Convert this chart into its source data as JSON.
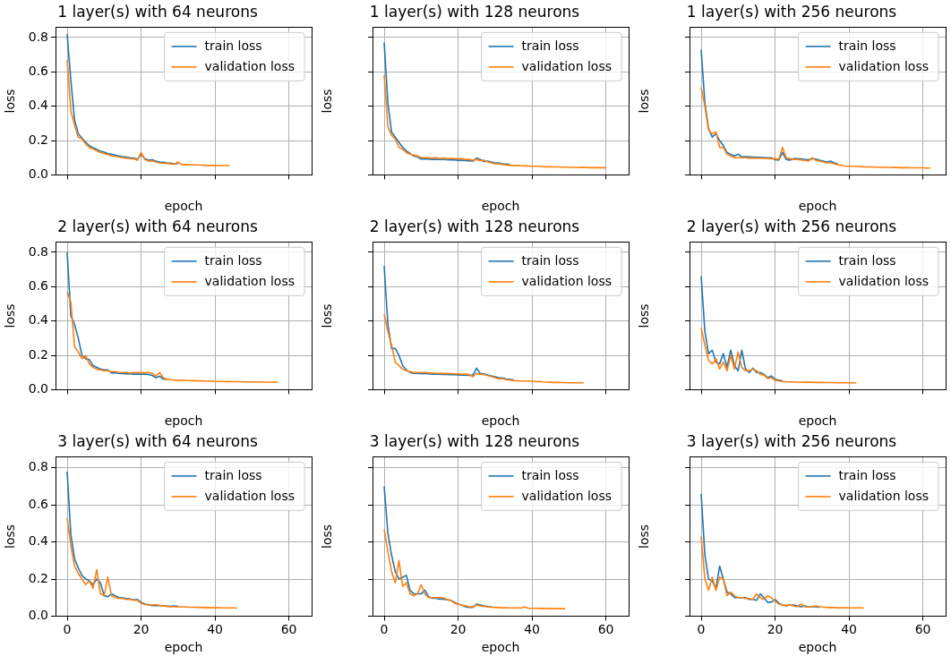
{
  "chart_data": [
    {
      "type": "line",
      "title": "1 layer(s) with 64 neurons",
      "xlabel": "epoch",
      "ylabel": "loss",
      "xlim": [
        -3.15,
        66.15
      ],
      "xticks": [
        0,
        20,
        40,
        60
      ],
      "ylim": [
        0,
        0.86
      ],
      "yticks": [
        {
          "value": 0,
          "label": "0.0"
        },
        {
          "value": 0.2,
          "label": "0.2"
        },
        {
          "value": 0.4,
          "label": "0.4"
        },
        {
          "value": 0.6,
          "label": "0.6"
        },
        {
          "value": 0.8,
          "label": "0.8"
        }
      ],
      "grid": true,
      "legend": "top right",
      "tick_labels": "y",
      "x": [
        0,
        1,
        2,
        3,
        4,
        5,
        6,
        7,
        8,
        9,
        10,
        11,
        12,
        13,
        14,
        15,
        16,
        17,
        18,
        19,
        20,
        21,
        22,
        23,
        24,
        25,
        26,
        27,
        28,
        29,
        30,
        31,
        32,
        33,
        34,
        35,
        36,
        37,
        38,
        39,
        40,
        41,
        42,
        43,
        44
      ],
      "series": [
        {
          "name": "train loss",
          "color": "#1f77b4",
          "values": [
            0.82,
            0.55,
            0.32,
            0.24,
            0.215,
            0.19,
            0.17,
            0.158,
            0.148,
            0.138,
            0.132,
            0.125,
            0.12,
            0.115,
            0.11,
            0.106,
            0.104,
            0.1,
            0.098,
            0.09,
            0.12,
            0.095,
            0.085,
            0.088,
            0.08,
            0.075,
            0.073,
            0.07,
            0.068,
            0.065,
            0.065,
            null,
            null,
            null,
            null,
            null,
            null,
            null,
            null,
            null,
            null,
            null,
            null,
            null,
            null
          ]
        },
        {
          "name": "validation loss",
          "color": "#ff7f0e",
          "values": [
            0.67,
            0.37,
            0.29,
            0.22,
            0.21,
            0.18,
            0.16,
            0.15,
            0.14,
            0.13,
            0.125,
            0.118,
            0.112,
            0.108,
            0.104,
            0.1,
            0.098,
            0.095,
            0.093,
            0.085,
            0.13,
            0.09,
            0.08,
            0.082,
            0.075,
            0.07,
            0.068,
            0.066,
            0.064,
            0.062,
            0.075,
            0.06,
            0.06,
            0.06,
            0.058,
            0.058,
            0.057,
            0.056,
            0.055,
            0.055,
            0.055,
            0.054,
            0.054,
            0.054,
            0.054
          ]
        }
      ]
    },
    {
      "type": "line",
      "title": "1 layer(s) with 128 neurons",
      "xlabel": "epoch",
      "ylabel": "loss",
      "xlim": [
        -3.15,
        66.15
      ],
      "xticks": [
        0,
        20,
        40,
        60
      ],
      "ylim": [
        0,
        0.86
      ],
      "yticks": [
        0,
        0.2,
        0.4,
        0.6,
        0.8
      ],
      "grid": true,
      "legend": "top right",
      "tick_labels": false,
      "x": [
        0,
        1,
        2,
        3,
        4,
        5,
        6,
        7,
        8,
        9,
        10,
        11,
        12,
        13,
        14,
        15,
        16,
        17,
        18,
        19,
        20,
        21,
        22,
        23,
        24,
        25,
        26,
        27,
        28,
        29,
        30,
        31,
        32,
        33,
        34,
        35,
        36,
        37,
        38,
        39,
        40,
        41,
        42,
        43,
        44,
        45,
        46,
        47,
        48,
        49,
        50,
        51,
        52,
        53,
        54,
        55,
        56,
        57,
        58,
        59,
        60
      ],
      "series": [
        {
          "name": "train loss",
          "color": "#1f77b4",
          "values": [
            0.77,
            0.42,
            0.25,
            0.22,
            0.19,
            0.16,
            0.14,
            0.125,
            0.11,
            0.105,
            0.092,
            0.092,
            0.092,
            0.09,
            0.09,
            0.089,
            0.089,
            0.088,
            0.087,
            0.087,
            0.085,
            0.085,
            0.083,
            0.082,
            0.08,
            0.098,
            0.09,
            0.078,
            0.08,
            0.075,
            0.07,
            0.07,
            0.065,
            0.063,
            0.06,
            null,
            null,
            null,
            null,
            null,
            null,
            null,
            null,
            null,
            null,
            null,
            null,
            null,
            null,
            null,
            null,
            null,
            null,
            null,
            null,
            null,
            null,
            null,
            null,
            null,
            null
          ]
        },
        {
          "name": "validation loss",
          "color": "#ff7f0e",
          "values": [
            0.58,
            0.28,
            0.23,
            0.21,
            0.16,
            0.15,
            0.13,
            0.12,
            0.115,
            0.11,
            0.1,
            0.1,
            0.1,
            0.098,
            0.1,
            0.096,
            0.098,
            0.096,
            0.095,
            0.095,
            0.093,
            0.094,
            0.09,
            0.09,
            0.085,
            0.09,
            0.083,
            0.085,
            0.075,
            0.07,
            0.065,
            0.065,
            0.06,
            0.058,
            0.056,
            0.055,
            0.055,
            0.053,
            0.052,
            0.052,
            0.05,
            0.05,
            0.049,
            0.048,
            0.047,
            0.047,
            0.046,
            0.046,
            0.045,
            0.045,
            0.044,
            0.044,
            0.044,
            0.043,
            0.043,
            0.043,
            0.042,
            0.042,
            0.042,
            0.042,
            0.042
          ]
        }
      ]
    },
    {
      "type": "line",
      "title": "1 layer(s) with 256 neurons",
      "xlabel": "epoch",
      "ylabel": "loss",
      "xlim": [
        -3.15,
        66.15
      ],
      "xticks": [
        0,
        20,
        40,
        60
      ],
      "ylim": [
        0,
        0.86
      ],
      "yticks": [
        0,
        0.2,
        0.4,
        0.6,
        0.8
      ],
      "grid": true,
      "legend": "top right",
      "tick_labels": false,
      "x": [
        0,
        1,
        2,
        3,
        4,
        5,
        6,
        7,
        8,
        9,
        10,
        11,
        12,
        13,
        14,
        15,
        16,
        17,
        18,
        19,
        20,
        21,
        22,
        23,
        24,
        25,
        26,
        27,
        28,
        29,
        30,
        31,
        32,
        33,
        34,
        35,
        36,
        37,
        38,
        39,
        40,
        41,
        42,
        43,
        44,
        45,
        46,
        47,
        48,
        49,
        50,
        51,
        52,
        53,
        54,
        55,
        56,
        57,
        58,
        59,
        60,
        61,
        62
      ],
      "series": [
        {
          "name": "train loss",
          "color": "#1f77b4",
          "values": [
            0.73,
            0.42,
            0.27,
            0.22,
            0.24,
            0.2,
            0.17,
            0.13,
            0.12,
            0.11,
            0.12,
            0.105,
            0.106,
            0.105,
            0.104,
            0.103,
            0.102,
            0.101,
            0.1,
            0.099,
            0.088,
            0.086,
            0.13,
            0.09,
            0.086,
            0.095,
            0.094,
            0.093,
            0.09,
            0.088,
            0.095,
            0.092,
            0.085,
            0.08,
            0.075,
            0.08,
            0.07,
            0.063,
            null,
            null,
            null,
            null,
            null,
            null,
            null,
            null,
            null,
            null,
            null,
            null,
            null,
            null,
            null,
            null,
            null,
            null,
            null,
            null,
            null,
            null,
            null,
            null,
            null
          ]
        },
        {
          "name": "validation loss",
          "color": "#ff7f0e",
          "values": [
            0.51,
            0.4,
            0.26,
            0.24,
            0.25,
            0.16,
            0.16,
            0.12,
            0.11,
            0.1,
            0.1,
            0.1,
            0.1,
            0.098,
            0.098,
            0.098,
            0.097,
            0.096,
            0.095,
            0.094,
            0.095,
            0.09,
            0.16,
            0.1,
            0.095,
            0.09,
            0.09,
            0.087,
            0.085,
            0.08,
            0.1,
            0.085,
            0.08,
            0.075,
            0.07,
            0.07,
            0.065,
            0.058,
            0.055,
            0.052,
            0.05,
            0.05,
            0.049,
            0.048,
            0.047,
            0.046,
            0.046,
            0.045,
            0.045,
            0.044,
            0.044,
            0.044,
            0.043,
            0.043,
            0.042,
            0.042,
            0.042,
            0.041,
            0.041,
            0.041,
            0.041,
            0.04,
            0.04
          ]
        }
      ]
    },
    {
      "type": "line",
      "title": "2 layer(s) with 64 neurons",
      "xlabel": "epoch",
      "ylabel": "loss",
      "xlim": [
        -3.15,
        66.15
      ],
      "xticks": [
        0,
        20,
        40,
        60
      ],
      "ylim": [
        0,
        0.86
      ],
      "yticks": [
        {
          "value": 0,
          "label": "0.0"
        },
        {
          "value": 0.2,
          "label": "0.2"
        },
        {
          "value": 0.4,
          "label": "0.4"
        },
        {
          "value": 0.6,
          "label": "0.6"
        },
        {
          "value": 0.8,
          "label": "0.8"
        }
      ],
      "grid": true,
      "legend": "top right",
      "tick_labels": "y",
      "x": [
        0,
        1,
        2,
        3,
        4,
        5,
        6,
        7,
        8,
        9,
        10,
        11,
        12,
        13,
        14,
        15,
        16,
        17,
        18,
        19,
        20,
        21,
        22,
        23,
        24,
        25,
        26,
        27,
        28,
        29,
        30,
        31,
        32,
        33,
        34,
        35,
        36,
        37,
        38,
        39,
        40,
        41,
        42,
        43,
        44,
        45,
        46,
        47,
        48,
        49,
        50,
        51,
        52,
        53,
        54,
        55,
        56,
        57
      ],
      "series": [
        {
          "name": "train loss",
          "color": "#1f77b4",
          "values": [
            0.8,
            0.43,
            0.38,
            0.3,
            0.2,
            0.18,
            0.175,
            0.14,
            0.13,
            0.12,
            0.115,
            0.115,
            0.098,
            0.097,
            0.095,
            0.094,
            0.092,
            0.093,
            0.09,
            0.09,
            0.09,
            0.09,
            0.088,
            0.083,
            0.07,
            0.078,
            0.062,
            0.06,
            null,
            null,
            null,
            null,
            null,
            null,
            null,
            null,
            null,
            null,
            null,
            null,
            null,
            null,
            null,
            null,
            null,
            null,
            null,
            null,
            null,
            null,
            null,
            null,
            null,
            null,
            null,
            null,
            null,
            null
          ]
        },
        {
          "name": "validation loss",
          "color": "#ff7f0e",
          "values": [
            0.57,
            0.51,
            0.25,
            0.22,
            0.18,
            0.2,
            0.15,
            0.13,
            0.12,
            0.115,
            0.11,
            0.11,
            0.105,
            0.105,
            0.1,
            0.1,
            0.1,
            0.097,
            0.1,
            0.1,
            0.1,
            0.098,
            0.1,
            0.095,
            0.08,
            0.1,
            0.07,
            0.06,
            0.058,
            0.056,
            0.055,
            0.055,
            0.054,
            0.053,
            0.052,
            0.052,
            0.051,
            0.05,
            0.05,
            0.049,
            0.049,
            0.048,
            0.048,
            0.047,
            0.047,
            0.046,
            0.046,
            0.046,
            0.045,
            0.045,
            0.045,
            0.045,
            0.045,
            0.044,
            0.044,
            0.044,
            0.044,
            0.044
          ]
        }
      ]
    },
    {
      "type": "line",
      "title": "2 layer(s) with 128 neurons",
      "xlabel": "epoch",
      "ylabel": "loss",
      "xlim": [
        -3.15,
        66.15
      ],
      "xticks": [
        0,
        20,
        40,
        60
      ],
      "ylim": [
        0,
        0.86
      ],
      "yticks": [
        0,
        0.2,
        0.4,
        0.6,
        0.8
      ],
      "grid": true,
      "legend": "top right",
      "tick_labels": false,
      "x": [
        0,
        1,
        2,
        3,
        4,
        5,
        6,
        7,
        8,
        9,
        10,
        11,
        12,
        13,
        14,
        15,
        16,
        17,
        18,
        19,
        20,
        21,
        22,
        23,
        24,
        25,
        26,
        27,
        28,
        29,
        30,
        31,
        32,
        33,
        34,
        35,
        36,
        37,
        38,
        39,
        40,
        41,
        42,
        43,
        44,
        45,
        46,
        47,
        48,
        49,
        50,
        51,
        52,
        53,
        54
      ],
      "series": [
        {
          "name": "train loss",
          "color": "#1f77b4",
          "values": [
            0.72,
            0.38,
            0.24,
            0.24,
            0.2,
            0.14,
            0.115,
            0.1,
            0.095,
            0.095,
            0.094,
            0.093,
            0.092,
            0.09,
            0.09,
            0.089,
            0.088,
            0.088,
            0.087,
            0.087,
            0.086,
            0.085,
            0.084,
            0.083,
            0.085,
            0.125,
            0.095,
            0.092,
            0.085,
            0.08,
            0.075,
            0.07,
            0.068,
            0.062,
            0.06,
            0.056,
            null,
            null,
            null,
            null,
            null,
            null,
            null,
            null,
            null,
            null,
            null,
            null,
            null,
            null,
            null,
            null,
            null,
            null,
            null
          ]
        },
        {
          "name": "validation loss",
          "color": "#ff7f0e",
          "values": [
            0.44,
            0.34,
            0.26,
            0.16,
            0.14,
            0.12,
            0.11,
            0.105,
            0.1,
            0.1,
            0.1,
            0.1,
            0.098,
            0.097,
            0.096,
            0.095,
            0.094,
            0.094,
            0.093,
            0.092,
            0.092,
            0.09,
            0.09,
            0.088,
            0.075,
            0.095,
            0.09,
            0.088,
            0.082,
            0.076,
            0.07,
            0.062,
            0.065,
            0.058,
            0.056,
            0.053,
            0.052,
            0.05,
            0.05,
            0.05,
            0.05,
            0.048,
            0.047,
            0.045,
            0.044,
            0.043,
            0.042,
            0.042,
            0.041,
            0.041,
            0.04,
            0.04,
            0.04,
            0.04,
            0.04
          ]
        }
      ]
    },
    {
      "type": "line",
      "title": "2 layer(s) with 256 neurons",
      "xlabel": "epoch",
      "ylabel": "loss",
      "xlim": [
        -3.15,
        66.15
      ],
      "xticks": [
        0,
        20,
        40,
        60
      ],
      "ylim": [
        0,
        0.86
      ],
      "yticks": [
        0,
        0.2,
        0.4,
        0.6,
        0.8
      ],
      "grid": true,
      "legend": "top right",
      "tick_labels": false,
      "x": [
        0,
        1,
        2,
        3,
        4,
        5,
        6,
        7,
        8,
        9,
        10,
        11,
        12,
        13,
        14,
        15,
        16,
        17,
        18,
        19,
        20,
        21,
        22,
        23,
        24,
        25,
        26,
        27,
        28,
        29,
        30,
        31,
        32,
        33,
        34,
        35,
        36,
        37,
        38,
        39,
        40,
        41,
        42
      ],
      "series": [
        {
          "name": "train loss",
          "color": "#1f77b4",
          "values": [
            0.66,
            0.34,
            0.21,
            0.23,
            0.16,
            0.15,
            0.21,
            0.13,
            0.23,
            0.14,
            0.11,
            0.23,
            0.12,
            0.1,
            0.125,
            0.1,
            0.1,
            0.09,
            0.07,
            0.08,
            0.06,
            0.055,
            0.052,
            null,
            null,
            null,
            null,
            null,
            null,
            null,
            null,
            null,
            null,
            null,
            null,
            null,
            null,
            null,
            null,
            null,
            null,
            null,
            null
          ]
        },
        {
          "name": "validation loss",
          "color": "#ff7f0e",
          "values": [
            0.36,
            0.26,
            0.17,
            0.15,
            0.18,
            0.12,
            0.16,
            0.11,
            0.2,
            0.12,
            0.22,
            0.13,
            0.11,
            0.11,
            0.12,
            0.11,
            0.09,
            0.085,
            0.065,
            0.07,
            0.055,
            0.05,
            0.048,
            0.046,
            0.045,
            0.045,
            0.044,
            0.044,
            0.043,
            0.043,
            0.043,
            0.042,
            0.042,
            0.042,
            0.041,
            0.041,
            0.041,
            0.04,
            0.04,
            0.04,
            0.04,
            0.04,
            0.04
          ]
        }
      ]
    },
    {
      "type": "line",
      "title": "3 layer(s) with 64 neurons",
      "xlabel": "epoch",
      "ylabel": "loss",
      "xlim": [
        -3.15,
        66.15
      ],
      "xticks": [
        0,
        20,
        40,
        60
      ],
      "ylim": [
        0,
        0.86
      ],
      "yticks": [
        {
          "value": 0,
          "label": "0.0"
        },
        {
          "value": 0.2,
          "label": "0.2"
        },
        {
          "value": 0.4,
          "label": "0.4"
        },
        {
          "value": 0.6,
          "label": "0.6"
        },
        {
          "value": 0.8,
          "label": "0.8"
        }
      ],
      "grid": true,
      "legend": "top right",
      "x": [
        0,
        1,
        2,
        3,
        4,
        5,
        6,
        7,
        8,
        9,
        10,
        11,
        12,
        13,
        14,
        15,
        16,
        17,
        18,
        19,
        20,
        21,
        22,
        23,
        24,
        25,
        26,
        27,
        28,
        29,
        30,
        31,
        32,
        33,
        34,
        35,
        36,
        37,
        38,
        39,
        40,
        41,
        42,
        43,
        44,
        45,
        46
      ],
      "series": [
        {
          "name": "train loss",
          "color": "#1f77b4",
          "values": [
            0.78,
            0.44,
            0.31,
            0.26,
            0.22,
            0.2,
            0.19,
            0.17,
            0.2,
            0.18,
            0.11,
            0.105,
            0.12,
            0.11,
            0.1,
            0.098,
            0.095,
            0.093,
            0.088,
            0.09,
            0.075,
            0.065,
            0.062,
            0.057,
            0.058,
            0.056,
            0.055,
            0.054,
            0.053,
            0.055,
            0.052,
            null,
            null,
            null,
            null,
            null,
            null,
            null,
            null,
            null,
            null,
            null,
            null,
            null,
            null,
            null,
            null
          ]
        },
        {
          "name": "validation loss",
          "color": "#ff7f0e",
          "values": [
            0.53,
            0.38,
            0.27,
            0.23,
            0.2,
            0.17,
            0.19,
            0.15,
            0.25,
            0.12,
            0.11,
            0.21,
            0.11,
            0.1,
            0.095,
            0.095,
            0.09,
            0.09,
            0.085,
            0.085,
            0.07,
            0.062,
            0.06,
            0.06,
            0.062,
            0.058,
            0.055,
            0.052,
            0.05,
            0.05,
            0.05,
            0.05,
            0.049,
            0.048,
            0.048,
            0.047,
            0.047,
            0.046,
            0.046,
            0.045,
            0.045,
            0.045,
            0.044,
            0.044,
            0.044,
            0.044,
            0.043
          ]
        }
      ]
    },
    {
      "type": "line",
      "title": "3 layer(s) with 128 neurons",
      "xlabel": "epoch",
      "ylabel": "loss",
      "xlim": [
        -3.15,
        66.15
      ],
      "xticks": [
        0,
        20,
        40,
        60
      ],
      "ylim": [
        0,
        0.86
      ],
      "yticks": [
        0,
        0.2,
        0.4,
        0.6,
        0.8
      ],
      "grid": true,
      "legend": "top right",
      "tick_labels": "x",
      "x": [
        0,
        1,
        2,
        3,
        4,
        5,
        6,
        7,
        8,
        9,
        10,
        11,
        12,
        13,
        14,
        15,
        16,
        17,
        18,
        19,
        20,
        21,
        22,
        23,
        24,
        25,
        26,
        27,
        28,
        29,
        30,
        31,
        32,
        33,
        34,
        35,
        36,
        37,
        38,
        39,
        40,
        41,
        42,
        43,
        44,
        45,
        46,
        47,
        48,
        49
      ],
      "series": [
        {
          "name": "train loss",
          "color": "#1f77b4",
          "values": [
            0.7,
            0.45,
            0.33,
            0.24,
            0.2,
            0.21,
            0.22,
            0.14,
            0.12,
            0.12,
            0.12,
            0.14,
            0.105,
            0.096,
            0.096,
            0.092,
            0.092,
            0.088,
            0.085,
            0.075,
            0.065,
            0.06,
            0.05,
            0.047,
            0.047,
            0.065,
            0.06,
            0.055,
            0.052,
            0.05,
            null,
            null,
            null,
            null,
            null,
            null,
            null,
            null,
            null,
            null,
            null,
            null,
            null,
            null,
            null,
            null,
            null,
            null,
            null,
            null
          ]
        },
        {
          "name": "validation loss",
          "color": "#ff7f0e",
          "values": [
            0.47,
            0.35,
            0.24,
            0.18,
            0.3,
            0.16,
            0.18,
            0.12,
            0.11,
            0.12,
            0.17,
            0.12,
            0.1,
            0.1,
            0.1,
            0.1,
            0.098,
            0.09,
            0.085,
            0.07,
            0.065,
            0.06,
            0.055,
            0.05,
            0.05,
            0.06,
            0.055,
            0.052,
            0.05,
            0.048,
            0.047,
            0.046,
            0.045,
            0.045,
            0.044,
            0.044,
            0.044,
            0.043,
            0.05,
            0.042,
            0.042,
            0.042,
            0.041,
            0.041,
            0.041,
            0.04,
            0.04,
            0.04,
            0.04,
            0.04
          ]
        }
      ]
    },
    {
      "type": "line",
      "title": "3 layer(s) with 256 neurons",
      "xlabel": "epoch",
      "ylabel": "loss",
      "xlim": [
        -3.15,
        66.15
      ],
      "xticks": [
        0,
        20,
        40,
        60
      ],
      "ylim": [
        0,
        0.86
      ],
      "yticks": [
        0,
        0.2,
        0.4,
        0.6,
        0.8
      ],
      "grid": true,
      "legend": "top right",
      "tick_labels": "x",
      "x": [
        0,
        1,
        2,
        3,
        4,
        5,
        6,
        7,
        8,
        9,
        10,
        11,
        12,
        13,
        14,
        15,
        16,
        17,
        18,
        19,
        20,
        21,
        22,
        23,
        24,
        25,
        26,
        27,
        28,
        29,
        30,
        31,
        32,
        33,
        34,
        35,
        36,
        37,
        38,
        39,
        40,
        41,
        42,
        43,
        44
      ],
      "series": [
        {
          "name": "train loss",
          "color": "#1f77b4",
          "values": [
            0.66,
            0.33,
            0.2,
            0.19,
            0.15,
            0.27,
            0.2,
            0.13,
            0.12,
            0.1,
            0.1,
            0.1,
            0.1,
            0.09,
            0.09,
            0.085,
            0.12,
            0.1,
            0.075,
            0.075,
            0.09,
            0.07,
            0.06,
            0.055,
            0.06,
            0.06,
            0.055,
            0.05,
            0.055,
            0.05,
            0.05,
            0.05,
            0.048,
            null,
            null,
            null,
            null,
            null,
            null,
            null,
            null,
            null,
            null,
            null,
            null
          ]
        },
        {
          "name": "validation loss",
          "color": "#ff7f0e",
          "values": [
            0.43,
            0.2,
            0.14,
            0.21,
            0.14,
            0.21,
            0.2,
            0.11,
            0.13,
            0.11,
            0.1,
            0.1,
            0.095,
            0.095,
            0.09,
            0.12,
            0.1,
            0.09,
            0.11,
            0.1,
            0.08,
            0.065,
            0.06,
            0.058,
            0.06,
            0.055,
            0.05,
            0.065,
            0.05,
            0.05,
            0.05,
            0.055,
            0.05,
            0.048,
            0.047,
            0.046,
            0.046,
            0.045,
            0.045,
            0.045,
            0.044,
            0.044,
            0.044,
            0.044,
            0.044
          ]
        }
      ]
    }
  ]
}
